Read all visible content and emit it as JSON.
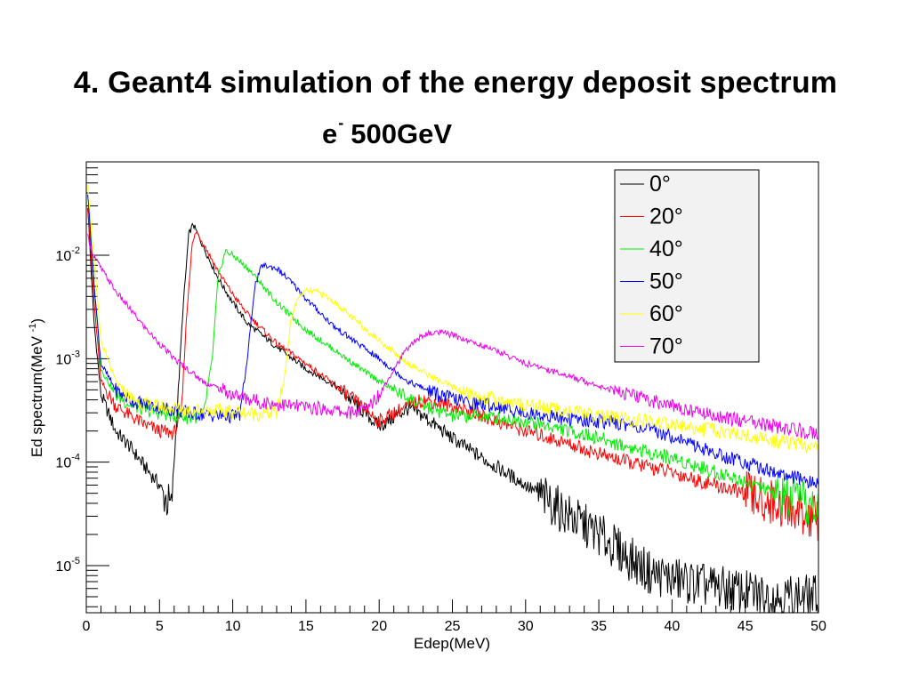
{
  "slide": {
    "title": "4. Geant4 simulation of the energy deposit spectrum"
  },
  "chart_title": {
    "particle": "e",
    "charge": "-",
    "energy": "500GeV"
  },
  "chart_data": {
    "type": "line",
    "title": "e- 500GeV",
    "xlabel": "Edep(MeV)",
    "ylabel": "Ed spectrum(MeV -1)",
    "xlim": [
      0,
      50
    ],
    "ylim": [
      3.5e-06,
      0.08
    ],
    "yscale": "log",
    "grid": false,
    "legend_position": "top-right",
    "x_ticks": [
      0,
      5,
      10,
      15,
      20,
      25,
      30,
      35,
      40,
      45,
      50
    ],
    "y_ticks": [
      1e-05,
      0.0001,
      0.001,
      0.01
    ],
    "y_tick_labels": [
      {
        "base": "10",
        "exp": "-5"
      },
      {
        "base": "10",
        "exp": "-4"
      },
      {
        "base": "10",
        "exp": "-3"
      },
      {
        "base": "10",
        "exp": "-2"
      }
    ],
    "series": [
      {
        "name": "0°",
        "color": "#000000",
        "x": [
          0.1,
          0.5,
          1,
          2,
          3,
          4,
          5,
          5.8,
          6.2,
          6.6,
          7,
          7.3,
          8,
          9,
          10,
          11,
          13,
          15,
          17,
          19,
          20,
          21,
          22,
          23,
          25,
          27,
          30,
          33,
          35,
          37,
          38.5,
          40,
          42,
          45,
          47,
          50
        ],
        "y": [
          0.03,
          0.0025,
          0.00045,
          0.0002,
          0.00014,
          9e-05,
          6e-05,
          3.5e-05,
          0.0003,
          0.003,
          0.016,
          0.02,
          0.012,
          0.006,
          0.0035,
          0.0022,
          0.0013,
          0.0008,
          0.00055,
          0.0003,
          0.00022,
          0.00027,
          0.00033,
          0.00028,
          0.00017,
          0.00011,
          6e-05,
          3e-05,
          2e-05,
          1.2e-05,
          8.5e-06,
          7.5e-06,
          6.5e-06,
          5.5e-06,
          5e-06,
          5e-06
        ]
      },
      {
        "name": "20°",
        "color": "#ff0000",
        "x": [
          0.1,
          0.5,
          1,
          2,
          3,
          4,
          5,
          6,
          6.5,
          6.8,
          7.2,
          7.5,
          8,
          9,
          10,
          11,
          13,
          15,
          17,
          19,
          20,
          21,
          22,
          23,
          25,
          27,
          30,
          33,
          35,
          37,
          40,
          42,
          45,
          47,
          50
        ],
        "y": [
          0.03,
          0.004,
          0.0006,
          0.00035,
          0.00028,
          0.00023,
          0.0002,
          0.00019,
          0.0003,
          0.002,
          0.012,
          0.017,
          0.013,
          0.007,
          0.0042,
          0.0027,
          0.0014,
          0.0009,
          0.00055,
          0.00033,
          0.00025,
          0.0003,
          0.00035,
          0.0004,
          0.00035,
          0.00028,
          0.0002,
          0.00015,
          0.00012,
          0.0001,
          8e-05,
          6.5e-05,
          5e-05,
          4e-05,
          2.8e-05
        ]
      },
      {
        "name": "40°",
        "color": "#00ee00",
        "x": [
          0.1,
          0.5,
          1,
          2,
          3,
          4,
          5,
          6,
          7,
          8,
          8.6,
          9,
          9.5,
          10,
          11,
          12,
          13,
          15,
          17,
          19,
          21,
          23,
          25,
          27,
          30,
          33,
          35,
          37,
          40,
          43,
          45,
          47,
          50
        ],
        "y": [
          0.04,
          0.006,
          0.0008,
          0.00045,
          0.00036,
          0.00032,
          0.0003,
          0.00028,
          0.00027,
          0.00028,
          0.001,
          0.006,
          0.011,
          0.01,
          0.0075,
          0.0052,
          0.0035,
          0.0019,
          0.0012,
          0.00075,
          0.0005,
          0.00035,
          0.00028,
          0.00028,
          0.00025,
          0.0002,
          0.00017,
          0.00014,
          0.00011,
          8e-05,
          6.5e-05,
          5e-05,
          3.5e-05
        ]
      },
      {
        "name": "50°",
        "color": "#0000ff",
        "x": [
          0.1,
          0.5,
          1,
          2,
          3,
          4,
          5,
          7,
          9,
          9.5,
          10,
          10.5,
          11,
          11.5,
          12,
          13,
          14,
          15,
          17,
          20,
          22,
          24,
          26,
          28,
          30,
          33,
          35,
          37,
          40,
          43,
          45,
          47,
          50
        ],
        "y": [
          0.04,
          0.006,
          0.0009,
          0.0005,
          0.0004,
          0.00036,
          0.00034,
          0.0003,
          0.00028,
          0.00028,
          0.00028,
          0.00029,
          0.001,
          0.005,
          0.008,
          0.0075,
          0.0055,
          0.0038,
          0.002,
          0.001,
          0.0006,
          0.00045,
          0.00038,
          0.00035,
          0.0003,
          0.00026,
          0.00025,
          0.00023,
          0.00018,
          0.00012,
          0.0001,
          8e-05,
          6e-05
        ]
      },
      {
        "name": "60°",
        "color": "#ffff00",
        "x": [
          0.1,
          0.5,
          1,
          2,
          3,
          4,
          5,
          7,
          10,
          12,
          13,
          13.5,
          14,
          14.5,
          15,
          15.5,
          16,
          17,
          18,
          20,
          22,
          24,
          26,
          28,
          30,
          33,
          35,
          38,
          40,
          42,
          45,
          47,
          50
        ],
        "y": [
          0.05,
          0.01,
          0.0015,
          0.0006,
          0.00042,
          0.00036,
          0.00034,
          0.00032,
          0.00031,
          0.00029,
          0.0003,
          0.0006,
          0.0025,
          0.004,
          0.0045,
          0.0045,
          0.0043,
          0.0035,
          0.0026,
          0.0015,
          0.0009,
          0.00062,
          0.00046,
          0.0004,
          0.00036,
          0.00031,
          0.00028,
          0.00025,
          0.00023,
          0.00021,
          0.00018,
          0.00016,
          0.00014
        ]
      },
      {
        "name": "70°",
        "color": "#ee00ee",
        "x": [
          0.1,
          0.5,
          1,
          2,
          3,
          4,
          5,
          6,
          8,
          10,
          12,
          14,
          16,
          18,
          19,
          20,
          21,
          22,
          23,
          24,
          25,
          26,
          28,
          30,
          32,
          35,
          37,
          40,
          42,
          45,
          47,
          50
        ],
        "y": [
          0.015,
          0.01,
          0.0075,
          0.0045,
          0.003,
          0.002,
          0.0014,
          0.001,
          0.0006,
          0.00045,
          0.00038,
          0.00035,
          0.00033,
          0.0003,
          0.00032,
          0.00045,
          0.0008,
          0.0013,
          0.0017,
          0.0018,
          0.0017,
          0.0015,
          0.0012,
          0.0009,
          0.00075,
          0.00055,
          0.00045,
          0.00035,
          0.0003,
          0.00025,
          0.00022,
          0.00019
        ]
      }
    ]
  }
}
